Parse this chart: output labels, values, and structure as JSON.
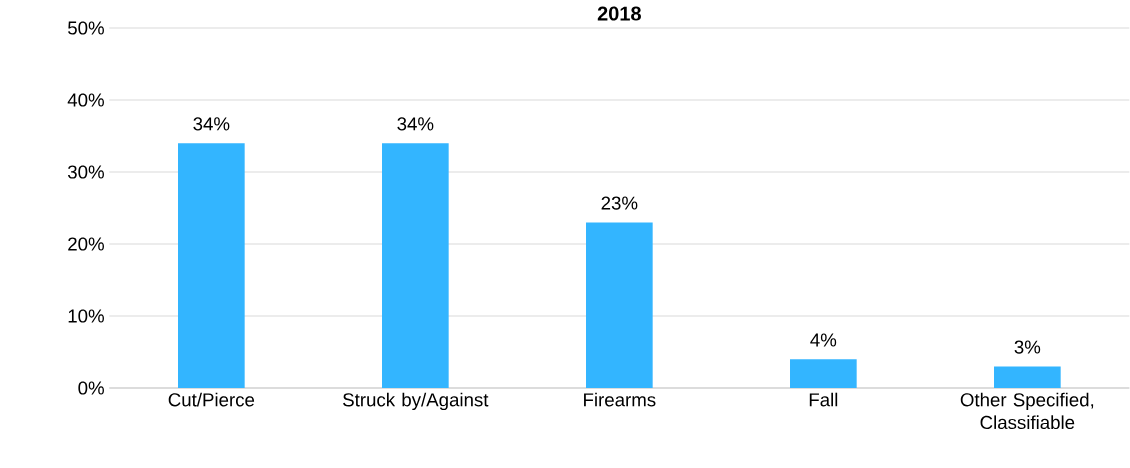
{
  "chart_data": {
    "type": "bar",
    "title": "2018",
    "categories": [
      "Cut/Pierce",
      "Struck by/Against",
      "Firearms",
      "Fall",
      "Other Specified, Classifiable"
    ],
    "values": [
      34,
      34,
      23,
      4,
      3
    ],
    "value_labels": [
      "34%",
      "34%",
      "23%",
      "4%",
      "3%"
    ],
    "color": "#33b5ff",
    "ylim": [
      0,
      50
    ],
    "yticks": [
      {
        "value": 0,
        "label": "0%"
      },
      {
        "value": 10,
        "label": "10%"
      },
      {
        "value": 20,
        "label": "20%"
      },
      {
        "value": 30,
        "label": "30%"
      },
      {
        "value": 40,
        "label": "40%"
      },
      {
        "value": 50,
        "label": "50%"
      }
    ],
    "grid": "y"
  }
}
